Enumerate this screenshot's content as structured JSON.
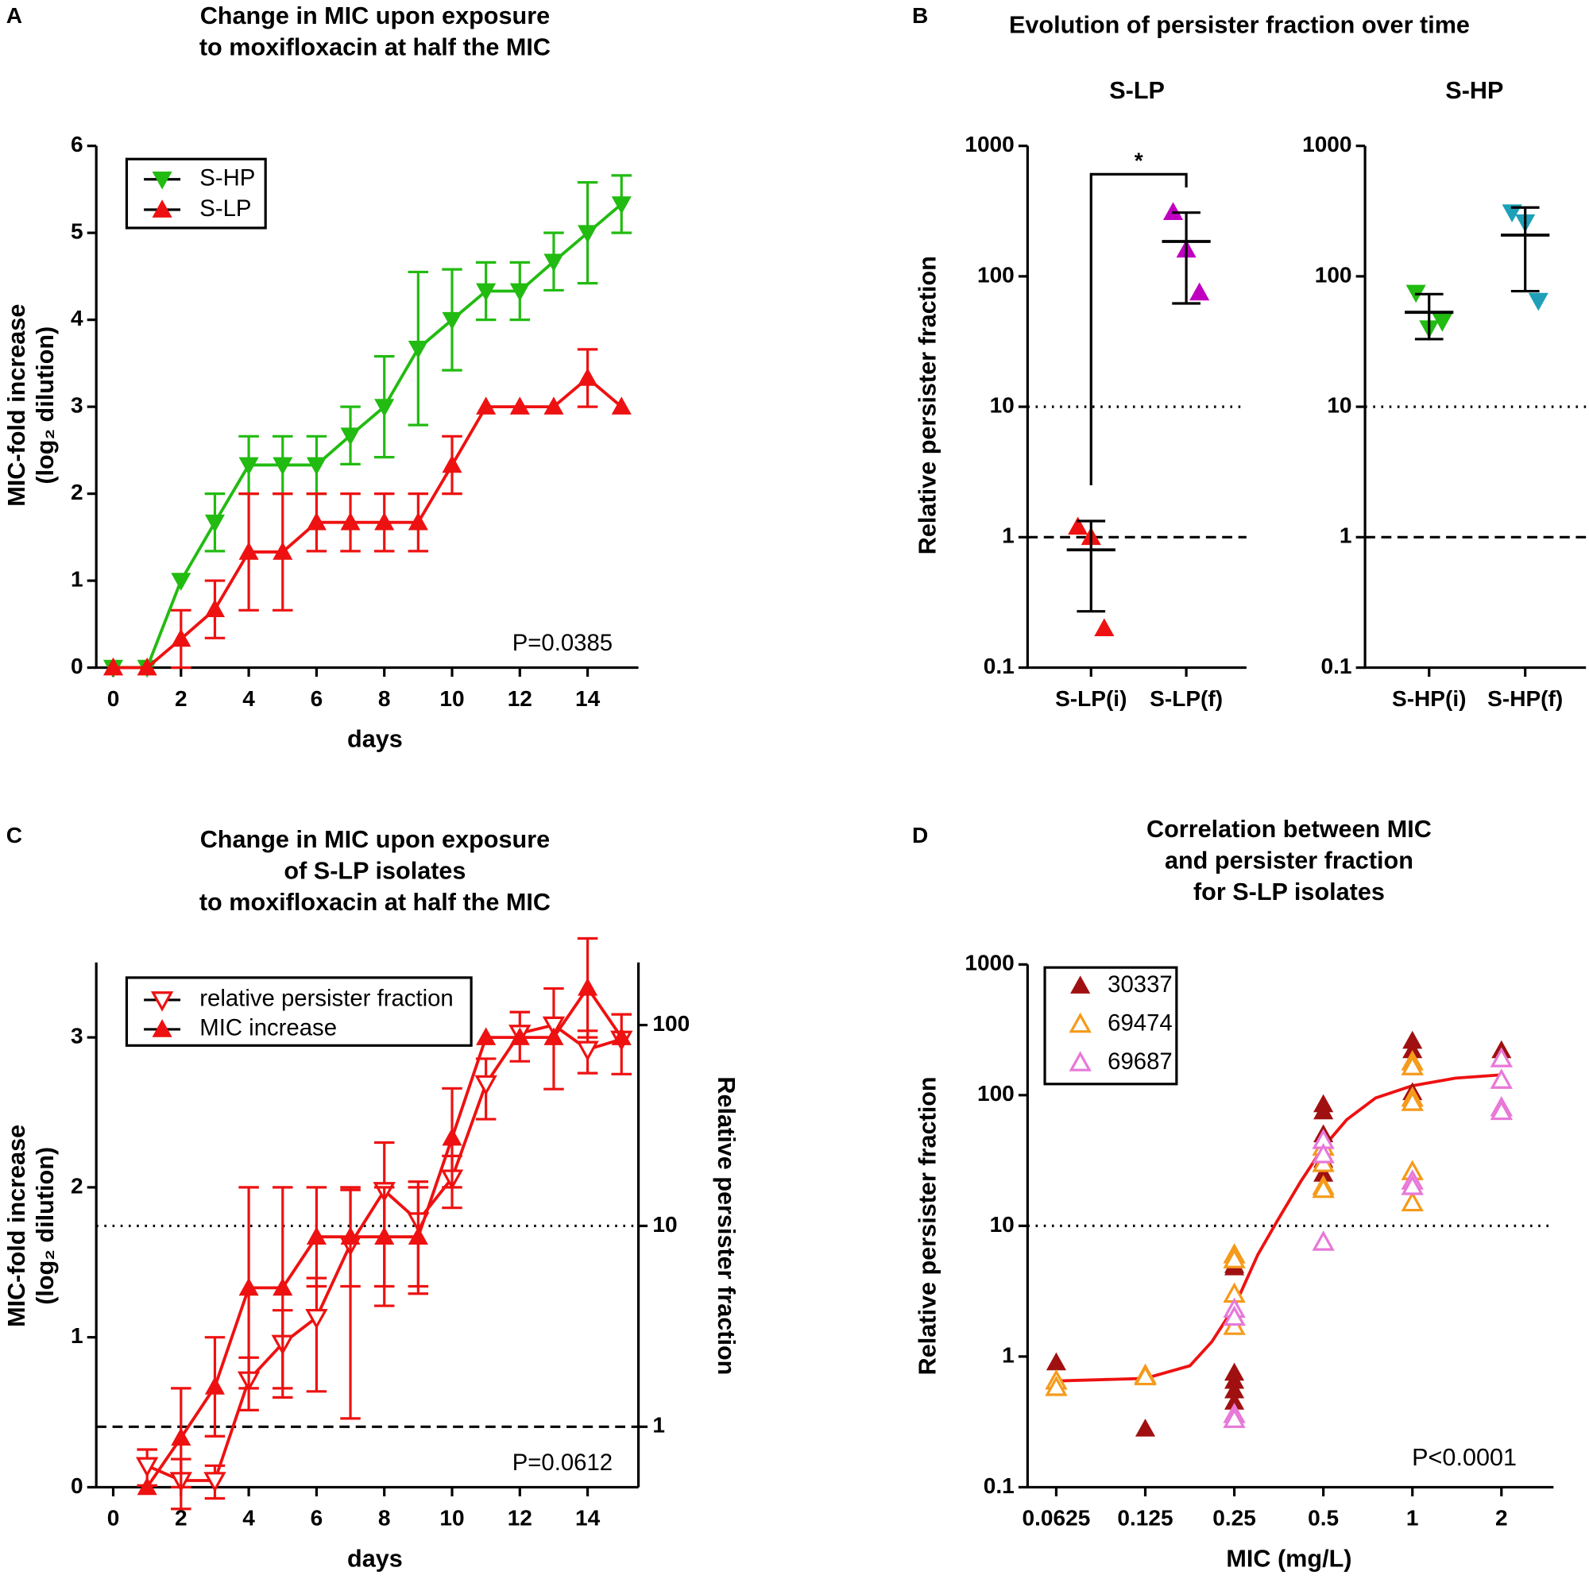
{
  "chart_data": [
    {
      "panel_label": "A",
      "type": "line",
      "title": [
        "Change in MIC upon exposure",
        "to moxifloxacin at half the MIC"
      ],
      "xlabel": "days",
      "ylabel": [
        "MIC-fold increase",
        "(log₂ dilution)"
      ],
      "xlim": [
        -0.5,
        15.5
      ],
      "ylim": [
        0,
        6
      ],
      "xticks": [
        0,
        2,
        4,
        6,
        8,
        10,
        12,
        14
      ],
      "yticks": [
        0,
        1,
        2,
        3,
        4,
        5,
        6
      ],
      "x": [
        0,
        1,
        2,
        3,
        4,
        5,
        6,
        7,
        8,
        9,
        10,
        11,
        12,
        13,
        14,
        15
      ],
      "series": [
        {
          "name": "S-HP",
          "color": "#22bb11",
          "marker": "triangle-down",
          "values": [
            0,
            0,
            1,
            1.67,
            2.33,
            2.33,
            2.33,
            2.67,
            3,
            3.67,
            4,
            4.33,
            4.33,
            4.67,
            5,
            5.33
          ],
          "errors": [
            0,
            0,
            0,
            0.33,
            0.33,
            0.33,
            0.33,
            0.33,
            0.58,
            0.88,
            0.58,
            0.33,
            0.33,
            0.33,
            0.58,
            0.33
          ]
        },
        {
          "name": "S-LP",
          "color": "#ee1111",
          "marker": "triangle-up",
          "values": [
            0,
            0,
            0.33,
            0.67,
            1.33,
            1.33,
            1.67,
            1.67,
            1.67,
            1.67,
            2.33,
            3,
            3,
            3,
            3.33,
            3
          ],
          "errors": [
            0,
            0,
            0.33,
            0.33,
            0.67,
            0.67,
            0.33,
            0.33,
            0.33,
            0.33,
            0.33,
            0,
            0,
            0,
            0.33,
            0
          ]
        }
      ],
      "annotation": "P=0.0385",
      "legend": "upper left"
    },
    {
      "panel_label": "B",
      "type": "dotplot",
      "title": "Evolution of persister fraction over time",
      "subtitle": "S-LP",
      "ylabel": "Relative persister fraction",
      "yscale": "log",
      "ylim": [
        0.1,
        1000
      ],
      "yticks": [
        0.1,
        1,
        10,
        100,
        1000
      ],
      "categories": [
        "S-LP(i)",
        "S-LP(f)"
      ],
      "points": [
        [
          1.2,
          1.0,
          0.2
        ],
        [
          310,
          160,
          75
        ]
      ],
      "point_colors": [
        "#ee1111",
        "#c000c0"
      ],
      "markers": [
        "triangle-up",
        "triangle-up"
      ],
      "values": [
        0.8,
        185
      ],
      "errors": [
        0.53,
        123
      ],
      "reference_lines": [
        {
          "value": 10,
          "style": "dotted"
        },
        {
          "value": 1,
          "style": "dashed"
        }
      ],
      "significance": "*"
    },
    {
      "type": "dotplot",
      "subtitle": "S-HP",
      "yscale": "log",
      "ylim": [
        0.1,
        1000
      ],
      "yticks": [
        0.1,
        1,
        10,
        100,
        1000
      ],
      "categories": [
        "S-HP(i)",
        "S-HP(f)"
      ],
      "points": [
        [
          75,
          40,
          45
        ],
        [
          310,
          260,
          65
        ]
      ],
      "point_colors": [
        "#22bb11",
        "#1fa0b8"
      ],
      "markers": [
        "triangle-down",
        "triangle-down"
      ],
      "values": [
        53,
        207
      ],
      "errors": [
        20,
        130
      ],
      "reference_lines": [
        {
          "value": 10,
          "style": "dotted"
        },
        {
          "value": 1,
          "style": "dashed"
        }
      ]
    },
    {
      "panel_label": "C",
      "type": "line",
      "title": [
        "Change in MIC upon exposure",
        "of S-LP isolates",
        "to moxifloxacin at half the MIC"
      ],
      "xlabel": "days",
      "ylabel": [
        "MIC-fold increase",
        "(log₂ dilution)"
      ],
      "y2label": "Relative persister fraction",
      "xlim": [
        -0.5,
        15.5
      ],
      "ylim": [
        0,
        3.5
      ],
      "y2scale": "log",
      "y2lim": [
        0.5,
        205
      ],
      "xticks": [
        0,
        2,
        4,
        6,
        8,
        10,
        12,
        14
      ],
      "yticks": [
        0,
        1,
        2,
        3
      ],
      "y2ticks": [
        1,
        10,
        100
      ],
      "x": [
        1,
        2,
        3,
        4,
        5,
        6,
        7,
        8,
        9,
        10,
        11,
        12,
        13,
        14,
        15
      ],
      "series": [
        {
          "name": "relative persister fraction",
          "axis": "y2",
          "color": "#ee1111",
          "marker": "triangle-down-open",
          "values": [
            0.64,
            0.54,
            0.54,
            1.71,
            2.6,
            3.5,
            8.1,
            15,
            10.6,
            17.3,
            51,
            91,
            100,
            75.6,
            85
          ],
          "errors": [
            0.13,
            0.15,
            0.1,
            0.5,
            1.2,
            2,
            7,
            11,
            6,
            5,
            17,
            25,
            52,
            18,
            28
          ]
        },
        {
          "name": "MIC increase",
          "color": "#ee1111",
          "marker": "triangle-up",
          "values": [
            0,
            0.33,
            0.67,
            1.33,
            1.33,
            1.67,
            1.67,
            1.67,
            1.67,
            2.33,
            3,
            3,
            3,
            3.33,
            3
          ],
          "errors": [
            0,
            0.33,
            0.33,
            0.67,
            0.67,
            0.33,
            0.33,
            0.33,
            0.33,
            0.33,
            0,
            0,
            0,
            0.33,
            0
          ]
        }
      ],
      "reference_lines": [
        {
          "value": 10,
          "axis": "y2",
          "style": "dotted"
        },
        {
          "value": 1,
          "axis": "y2",
          "style": "dashed"
        }
      ],
      "annotation": "P=0.0612",
      "legend": "upper left"
    },
    {
      "panel_label": "D",
      "type": "scatter",
      "title": [
        "Correlation between MIC",
        "and persister fraction",
        "for S-LP isolates"
      ],
      "xlabel": "MIC (mg/L)",
      "ylabel": "Relative persister fraction",
      "xscale": "log",
      "yscale": "log",
      "xlim": [
        0.05,
        3
      ],
      "ylim": [
        0.1,
        1000
      ],
      "xticks": [
        0.0625,
        0.125,
        0.25,
        0.5,
        1,
        2
      ],
      "yticks": [
        0.1,
        1,
        10,
        100,
        1000
      ],
      "series": [
        {
          "name": "30337",
          "color": "#a01010",
          "marker": "triangle-up",
          "x": [
            0.0625,
            0.125,
            0.25,
            0.25,
            0.25,
            0.25,
            0.25,
            0.25,
            0.5,
            0.5,
            0.5,
            0.5,
            0.5,
            1,
            1,
            1,
            1,
            2
          ],
          "values": [
            0.9,
            0.28,
            5,
            4.8,
            0.75,
            0.65,
            0.55,
            0.45,
            85,
            75,
            50,
            32,
            25,
            260,
            220,
            105,
            95,
            220
          ]
        },
        {
          "name": "69474",
          "color": "#f59a1a",
          "marker": "triangle-up-open",
          "x": [
            0.0625,
            0.0625,
            0.125,
            0.125,
            0.25,
            0.25,
            0.25,
            0.25,
            0.25,
            0.5,
            0.5,
            0.5,
            0.5,
            1,
            1,
            1,
            1,
            1,
            1
          ],
          "values": [
            0.65,
            0.58,
            0.72,
            0.7,
            6,
            5.5,
            3,
            2,
            1.7,
            40,
            30,
            20,
            19,
            180,
            165,
            95,
            88,
            26,
            15
          ]
        },
        {
          "name": "69687",
          "color": "#e878d8",
          "marker": "triangle-up-open",
          "x": [
            0.25,
            0.25,
            0.25,
            0.25,
            0.5,
            0.5,
            0.5,
            1,
            1,
            2,
            2,
            2,
            2
          ],
          "values": [
            2.3,
            2.0,
            0.36,
            0.33,
            45,
            35,
            7.5,
            22,
            20,
            190,
            130,
            80,
            75
          ]
        }
      ],
      "fit": {
        "color": "#ee1111",
        "x": [
          0.0625,
          0.125,
          0.177,
          0.21,
          0.25,
          0.3,
          0.35,
          0.42,
          0.5,
          0.6,
          0.75,
          1,
          1.4,
          2
        ],
        "values": [
          0.65,
          0.68,
          0.85,
          1.3,
          2.4,
          6,
          11,
          22,
          40,
          65,
          95,
          118,
          135,
          143
        ]
      },
      "reference_lines": [
        {
          "value": 10,
          "style": "dotted",
          "color": "#ee1111"
        }
      ],
      "annotation": "P<0.0001",
      "legend": "upper left"
    }
  ]
}
